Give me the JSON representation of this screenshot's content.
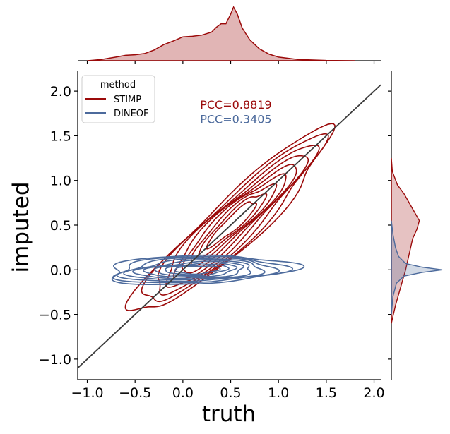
{
  "chart_data": {
    "type": "kde-joint-contour",
    "xlabel": "truth",
    "ylabel": "imputed",
    "xlim": [
      -1.1,
      2.07
    ],
    "ylim": [
      -1.23,
      2.23
    ],
    "xticks": [
      -1.0,
      -0.5,
      0.0,
      0.5,
      1.0,
      1.5,
      2.0
    ],
    "yticks": [
      -1.0,
      -0.5,
      0.0,
      0.5,
      1.0,
      1.5,
      2.0
    ],
    "xtick_labels": [
      "−1.0",
      "−0.5",
      "0.0",
      "0.5",
      "1.0",
      "1.5",
      "2.0"
    ],
    "ytick_labels": [
      "−1.0",
      "−0.5",
      "0.0",
      "0.5",
      "1.0",
      "1.5",
      "2.0"
    ],
    "identity_line": {
      "x": [
        -1.1,
        2.07
      ],
      "y": [
        -1.1,
        2.07
      ]
    },
    "grid": false,
    "legend": {
      "title": "method",
      "location": "upper-left",
      "entries": [
        "STIMP",
        "DINEOF"
      ]
    },
    "annotations": [
      {
        "text": "PCC=0.8819",
        "x": 0.18,
        "y": 1.85,
        "series": "STIMP"
      },
      {
        "text": "PCC=0.3405",
        "x": 0.18,
        "y": 1.69,
        "series": "DINEOF"
      }
    ],
    "series": [
      {
        "name": "STIMP",
        "color": "#9b0a0a",
        "center": [
          0.52,
          0.52
        ],
        "sigma_along": 0.62,
        "sigma_across": 0.1,
        "angle_deg": 45,
        "contour_levels": 9,
        "marginal_x": [
          [
            -1.0,
            0.0
          ],
          [
            -0.85,
            0.02
          ],
          [
            -0.7,
            0.06
          ],
          [
            -0.6,
            0.09
          ],
          [
            -0.5,
            0.1
          ],
          [
            -0.4,
            0.12
          ],
          [
            -0.3,
            0.18
          ],
          [
            -0.2,
            0.27
          ],
          [
            -0.1,
            0.33
          ],
          [
            0.0,
            0.4
          ],
          [
            0.1,
            0.41
          ],
          [
            0.2,
            0.43
          ],
          [
            0.3,
            0.48
          ],
          [
            0.35,
            0.56
          ],
          [
            0.4,
            0.62
          ],
          [
            0.45,
            0.62
          ],
          [
            0.5,
            0.78
          ],
          [
            0.53,
            0.9
          ],
          [
            0.57,
            0.78
          ],
          [
            0.62,
            0.55
          ],
          [
            0.7,
            0.35
          ],
          [
            0.8,
            0.2
          ],
          [
            0.9,
            0.11
          ],
          [
            1.0,
            0.06
          ],
          [
            1.2,
            0.02
          ],
          [
            1.5,
            0.005
          ],
          [
            1.8,
            0.0
          ]
        ],
        "marginal_y": [
          [
            -0.6,
            0.0
          ],
          [
            -0.4,
            0.08
          ],
          [
            -0.2,
            0.18
          ],
          [
            0.0,
            0.28
          ],
          [
            0.2,
            0.36
          ],
          [
            0.35,
            0.42
          ],
          [
            0.45,
            0.5
          ],
          [
            0.55,
            0.55
          ],
          [
            0.65,
            0.45
          ],
          [
            0.75,
            0.35
          ],
          [
            0.85,
            0.25
          ],
          [
            0.95,
            0.12
          ],
          [
            1.1,
            0.02
          ],
          [
            1.25,
            0.0
          ]
        ]
      },
      {
        "name": "DINEOF",
        "color": "#4c6a9c",
        "center": [
          0.15,
          0.0
        ],
        "sigma_along": 0.42,
        "sigma_across": 0.06,
        "angle_deg": 2,
        "contour_levels": 9,
        "marginal_y": [
          [
            -0.5,
            0.0
          ],
          [
            -0.3,
            0.03
          ],
          [
            -0.15,
            0.1
          ],
          [
            -0.07,
            0.25
          ],
          [
            -0.03,
            0.6
          ],
          [
            0.0,
            1.0
          ],
          [
            0.03,
            0.6
          ],
          [
            0.07,
            0.28
          ],
          [
            0.15,
            0.14
          ],
          [
            0.25,
            0.08
          ],
          [
            0.4,
            0.03
          ],
          [
            0.55,
            0.0
          ]
        ]
      }
    ]
  }
}
